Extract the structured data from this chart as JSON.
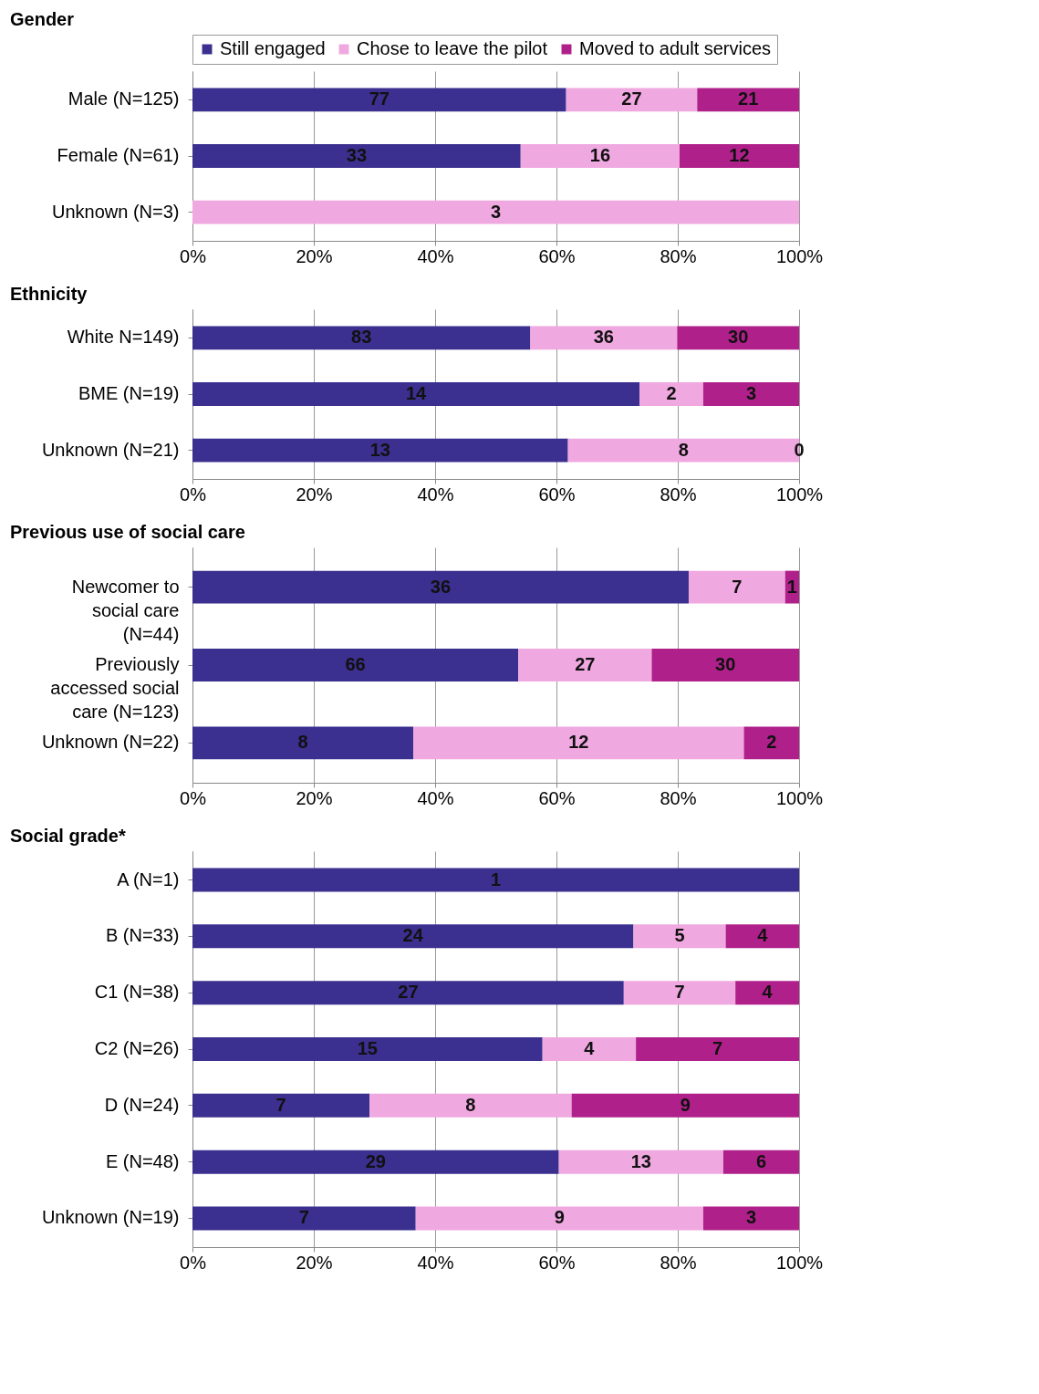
{
  "chart_data": [
    {
      "type": "bar",
      "orientation": "horizontal",
      "stacked": true,
      "title": "Gender",
      "legend": "top",
      "grid": "x",
      "categories": [
        "Male (N=125)",
        "Female (N=61)",
        "Unknown (N=3)"
      ],
      "xlim": [
        0,
        100
      ],
      "xticks": [
        {
          "value": 0,
          "label": "0%"
        },
        {
          "value": 20,
          "label": "20%"
        },
        {
          "value": 40,
          "label": "40%"
        },
        {
          "value": 60,
          "label": "60%"
        },
        {
          "value": 80,
          "label": "80%"
        },
        {
          "value": 100,
          "label": "100%"
        }
      ],
      "series": [
        {
          "name": "Still engaged",
          "color": "#3b2f8f",
          "values": [
            61.6,
            54.1,
            null
          ]
        },
        {
          "name": "Chose to leave the pilot",
          "color": "#f0a8e0",
          "values": [
            21.6,
            26.2,
            100
          ]
        },
        {
          "name": "Moved to adult services",
          "color": "#b0208a",
          "values": [
            16.8,
            19.7,
            null
          ]
        }
      ],
      "annotations": [
        "77",
        "27",
        "21",
        "33",
        "16",
        "12",
        "3"
      ]
    },
    {
      "type": "bar",
      "orientation": "horizontal",
      "stacked": true,
      "title": "Ethnicity",
      "grid": "x",
      "categories": [
        "White N=149)",
        "BME (N=19)",
        "Unknown (N=21)"
      ],
      "xlim": [
        0,
        100
      ],
      "xticks": [
        {
          "value": 0,
          "label": "0%"
        },
        {
          "value": 20,
          "label": "20%"
        },
        {
          "value": 40,
          "label": "40%"
        },
        {
          "value": 60,
          "label": "60%"
        },
        {
          "value": 80,
          "label": "80%"
        },
        {
          "value": 100,
          "label": "100%"
        }
      ],
      "series": [
        {
          "color": "#3b2f8f",
          "values": [
            55.7,
            73.7,
            61.9
          ]
        },
        {
          "color": "#f0a8e0",
          "values": [
            24.2,
            10.5,
            38.1
          ]
        },
        {
          "color": "#b0208a",
          "values": [
            20.1,
            15.8,
            0
          ]
        }
      ],
      "annotations": [
        "83",
        "36",
        "30",
        "14",
        "2",
        "3",
        "13",
        "8",
        "0"
      ]
    },
    {
      "type": "bar",
      "orientation": "horizontal",
      "stacked": true,
      "title": "Previous use of social care",
      "grid": "x",
      "categories": [
        "Newcomer to social care (N=44)",
        "Previously accessed social care (N=123)",
        "Unknown (N=22)"
      ],
      "xlim": [
        0,
        100
      ],
      "xticks": [
        {
          "value": 0,
          "label": "0%"
        },
        {
          "value": 20,
          "label": "20%"
        },
        {
          "value": 40,
          "label": "40%"
        },
        {
          "value": 60,
          "label": "60%"
        },
        {
          "value": 80,
          "label": "80%"
        },
        {
          "value": 100,
          "label": "100%"
        }
      ],
      "series": [
        {
          "color": "#3b2f8f",
          "values": [
            81.8,
            53.7,
            36.4
          ]
        },
        {
          "color": "#f0a8e0",
          "values": [
            15.9,
            22.0,
            54.5
          ]
        },
        {
          "color": "#b0208a",
          "values": [
            2.3,
            24.3,
            9.1
          ]
        }
      ],
      "annotations": [
        "36",
        "7",
        "1",
        "66",
        "27",
        "30",
        "8",
        "12",
        "2"
      ]
    },
    {
      "type": "bar",
      "orientation": "horizontal",
      "stacked": true,
      "title": "Social grade*",
      "grid": "x",
      "categories": [
        "A (N=1)",
        "B (N=33)",
        "C1 (N=38)",
        "C2 (N=26)",
        "D (N=24)",
        "E (N=48)",
        "Unknown (N=19)"
      ],
      "xlim": [
        0,
        100
      ],
      "xticks": [
        {
          "value": 0,
          "label": "0%"
        },
        {
          "value": 20,
          "label": "20%"
        },
        {
          "value": 40,
          "label": "40%"
        },
        {
          "value": 60,
          "label": "60%"
        },
        {
          "value": 80,
          "label": "80%"
        },
        {
          "value": 100,
          "label": "100%"
        }
      ],
      "series": [
        {
          "color": "#3b2f8f",
          "values": [
            100,
            72.7,
            71.1,
            57.7,
            29.2,
            60.4,
            36.8
          ]
        },
        {
          "color": "#f0a8e0",
          "values": [
            null,
            15.2,
            18.4,
            15.4,
            33.3,
            27.1,
            47.4
          ]
        },
        {
          "color": "#b0208a",
          "values": [
            null,
            12.1,
            10.5,
            26.9,
            37.5,
            12.5,
            15.8
          ]
        }
      ],
      "annotations": [
        "1",
        "24",
        "5",
        "4",
        "27",
        "7",
        "4",
        "15",
        "4",
        "7",
        "7",
        "8",
        "9",
        "29",
        "13",
        "6",
        "7",
        "9",
        "3"
      ]
    }
  ]
}
